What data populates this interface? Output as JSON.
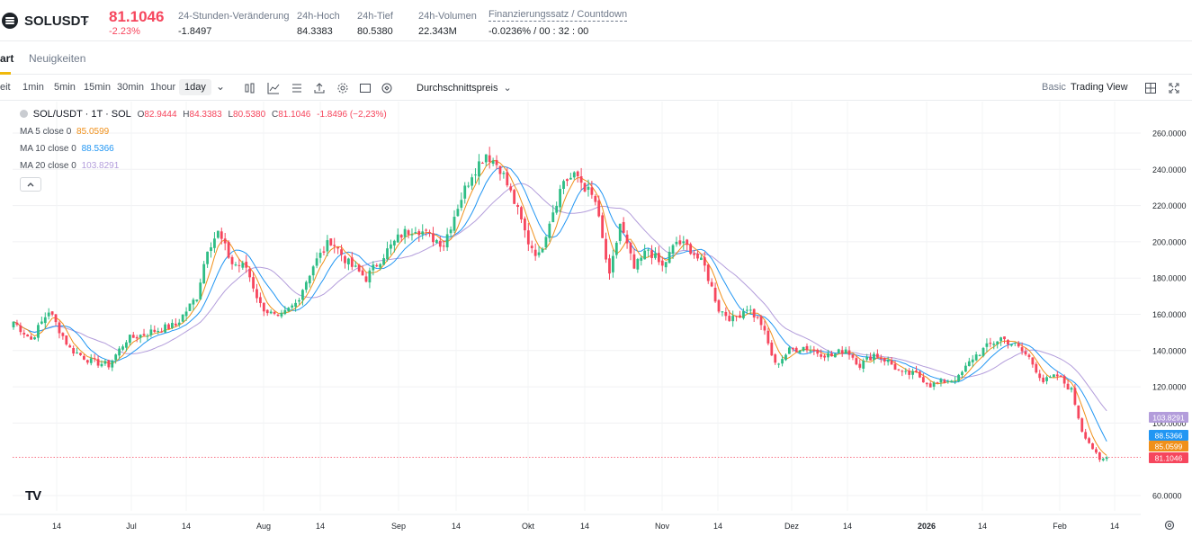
{
  "header": {
    "symbol": "SOLUSDT",
    "last_price": "81.1046",
    "change_pct": "-2.23%",
    "stats": [
      {
        "label": "24-Stunden-Veränderung",
        "value": "-1.8497"
      },
      {
        "label": "24h-Hoch",
        "value": "84.3383"
      },
      {
        "label": "24h-Tief",
        "value": "80.5380"
      },
      {
        "label": "24h-Volumen",
        "value": "22.343M"
      },
      {
        "label": "Finanzierungssatz / Countdown",
        "value": "-0.0236% / 00 : 32 : 00"
      }
    ]
  },
  "tabs": [
    {
      "label": "art",
      "active": true
    },
    {
      "label": "Neuigkeiten",
      "active": false
    }
  ],
  "toolbar": {
    "left_cut": "eit",
    "timeframes": [
      "1min",
      "5min",
      "15min",
      "30min",
      "1hour",
      "1day"
    ],
    "active_timeframe": "1day",
    "icons": [
      "candle-type-icon",
      "indicator-icon",
      "list-icon",
      "share-icon",
      "settings-icon",
      "fullscreen-box-icon",
      "refresh-icon"
    ],
    "price_type": "Durchschnittspreis",
    "basic_label": "Basic",
    "tradingview_label": "Trading View"
  },
  "legend": {
    "title": "SOL/USDT · 1T · SOL",
    "ohlc": [
      {
        "k": "O",
        "v": "82.9444"
      },
      {
        "k": "H",
        "v": "84.3383"
      },
      {
        "k": "L",
        "v": "80.5380"
      },
      {
        "k": "C",
        "v": "81.1046"
      }
    ],
    "change": "-1.8496 (−2,23%)",
    "ma": [
      {
        "label": "MA 5 close 0",
        "value": "85.0599",
        "color": "#f0901a"
      },
      {
        "label": "MA 10 close 0",
        "value": "88.5366",
        "color": "#2196f3"
      },
      {
        "label": "MA 20 close 0",
        "value": "103.8291",
        "color": "#b39ddb"
      }
    ]
  },
  "chart_data": {
    "type": "candlestick",
    "y_ticks": [
      "260.0000",
      "240.0000",
      "220.0000",
      "200.0000",
      "180.0000",
      "160.0000",
      "140.0000",
      "120.0000",
      "100.0000",
      "60.0000"
    ],
    "y_range": [
      60,
      270
    ],
    "x_ticks": [
      "14",
      "Jul",
      "14",
      "Aug",
      "14",
      "Sep",
      "14",
      "Okt",
      "14",
      "Nov",
      "14",
      "Dez",
      "14",
      "2026",
      "14",
      "Feb",
      "14"
    ],
    "price_labels": [
      {
        "value": "103.8291",
        "color": "#b39ddb"
      },
      {
        "value": "88.5366",
        "color": "#2196f3"
      },
      {
        "value": "85.0599",
        "color": "#f0901a"
      },
      {
        "value": "81.1046",
        "color": "#f6465d"
      }
    ],
    "up_color": "#2ebd85",
    "down_color": "#f6465d",
    "waypoints": [
      [
        0,
        156
      ],
      [
        5,
        146
      ],
      [
        10,
        162
      ],
      [
        16,
        141
      ],
      [
        22,
        134
      ],
      [
        27,
        132
      ],
      [
        32,
        146
      ],
      [
        40,
        151
      ],
      [
        46,
        154
      ],
      [
        52,
        170
      ],
      [
        55,
        197
      ],
      [
        58,
        205
      ],
      [
        62,
        188
      ],
      [
        66,
        186
      ],
      [
        70,
        165
      ],
      [
        75,
        157
      ],
      [
        80,
        166
      ],
      [
        85,
        187
      ],
      [
        90,
        201
      ],
      [
        95,
        188
      ],
      [
        100,
        180
      ],
      [
        105,
        193
      ],
      [
        110,
        204
      ],
      [
        114,
        208
      ],
      [
        118,
        203
      ],
      [
        122,
        199
      ],
      [
        126,
        220
      ],
      [
        130,
        238
      ],
      [
        134,
        249
      ],
      [
        138,
        241
      ],
      [
        142,
        222
      ],
      [
        146,
        200
      ],
      [
        149,
        192
      ],
      [
        152,
        212
      ],
      [
        156,
        234
      ],
      [
        160,
        236
      ],
      [
        165,
        222
      ],
      [
        169,
        180
      ],
      [
        172,
        210
      ],
      [
        176,
        185
      ],
      [
        180,
        196
      ],
      [
        184,
        186
      ],
      [
        188,
        200
      ],
      [
        192,
        196
      ],
      [
        196,
        186
      ],
      [
        200,
        163
      ],
      [
        204,
        157
      ],
      [
        208,
        164
      ],
      [
        212,
        155
      ],
      [
        216,
        132
      ],
      [
        220,
        140
      ],
      [
        224,
        142
      ],
      [
        228,
        139
      ],
      [
        232,
        137
      ],
      [
        236,
        141
      ],
      [
        240,
        132
      ],
      [
        244,
        138
      ],
      [
        248,
        134
      ],
      [
        252,
        127
      ],
      [
        256,
        127
      ],
      [
        260,
        121
      ],
      [
        264,
        123
      ],
      [
        268,
        125
      ],
      [
        272,
        136
      ],
      [
        276,
        142
      ],
      [
        280,
        147
      ],
      [
        284,
        143
      ],
      [
        288,
        136
      ],
      [
        292,
        123
      ],
      [
        296,
        126
      ],
      [
        300,
        118
      ],
      [
        303,
        96
      ],
      [
        306,
        86
      ],
      [
        308,
        79
      ],
      [
        310,
        81
      ]
    ]
  }
}
